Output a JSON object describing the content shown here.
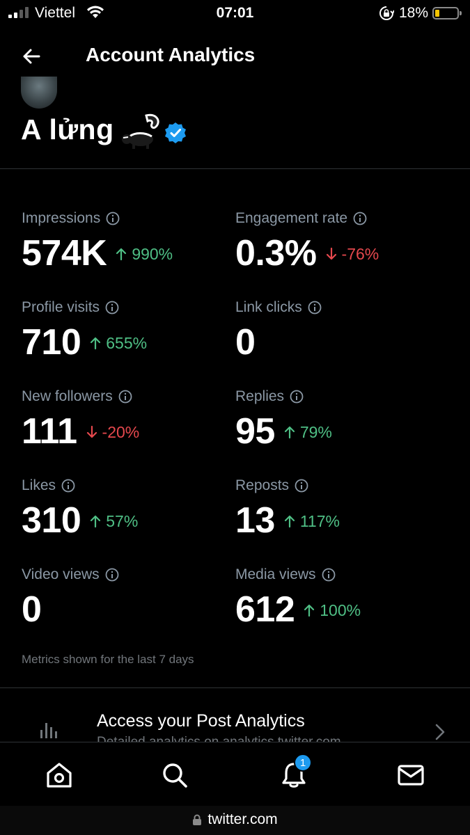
{
  "status_bar": {
    "carrier": "Viettel",
    "time": "07:01",
    "battery_percent": "18%"
  },
  "header": {
    "title": "Account Analytics",
    "profile_name": "A lửng"
  },
  "metrics": [
    {
      "id": "impressions",
      "label": "Impressions",
      "value": "574K",
      "change": "990%",
      "direction": "up"
    },
    {
      "id": "engagement-rate",
      "label": "Engagement rate",
      "value": "0.3%",
      "change": "-76%",
      "direction": "down"
    },
    {
      "id": "profile-visits",
      "label": "Profile visits",
      "value": "710",
      "change": "655%",
      "direction": "up"
    },
    {
      "id": "link-clicks",
      "label": "Link clicks",
      "value": "0",
      "change": "",
      "direction": "none"
    },
    {
      "id": "new-followers",
      "label": "New followers",
      "value": "111",
      "change": "-20%",
      "direction": "down"
    },
    {
      "id": "replies",
      "label": "Replies",
      "value": "95",
      "change": "79%",
      "direction": "up"
    },
    {
      "id": "likes",
      "label": "Likes",
      "value": "310",
      "change": "57%",
      "direction": "up"
    },
    {
      "id": "reposts",
      "label": "Reposts",
      "value": "13",
      "change": "117%",
      "direction": "up"
    },
    {
      "id": "video-views",
      "label": "Video views",
      "value": "0",
      "change": "",
      "direction": "none"
    },
    {
      "id": "media-views",
      "label": "Media views",
      "value": "612",
      "change": "100%",
      "direction": "up"
    }
  ],
  "footnote": "Metrics shown for the last 7 days",
  "post_analytics": {
    "title": "Access your Post Analytics",
    "subtitle": "Detailed analytics on analytics.twitter.com"
  },
  "nav": {
    "icons": [
      "home-icon",
      "search-icon",
      "bell-icon",
      "mail-icon"
    ],
    "notification_count": "1"
  },
  "browser": {
    "url": "twitter.com"
  },
  "colors": {
    "background": "#000000",
    "positive": "#4fbf85",
    "negative": "#e5484d",
    "muted": "#8b98a5",
    "accent": "#1d9bf0"
  }
}
